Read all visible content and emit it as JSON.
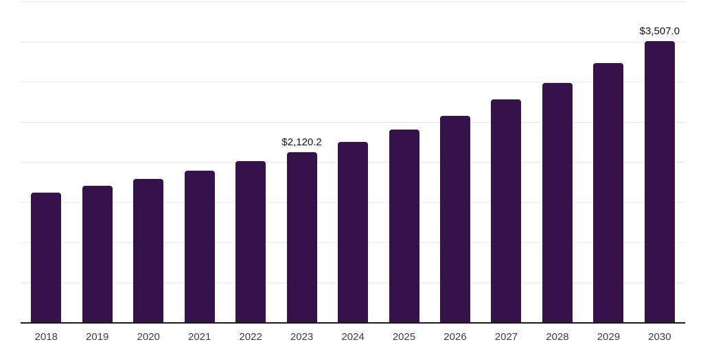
{
  "chart_data": {
    "type": "bar",
    "title": "",
    "xlabel": "",
    "ylabel": "",
    "categories": [
      "2018",
      "2019",
      "2020",
      "2021",
      "2022",
      "2023",
      "2024",
      "2025",
      "2026",
      "2027",
      "2028",
      "2029",
      "2030"
    ],
    "values": [
      1615,
      1700,
      1790,
      1890,
      2005,
      2120.2,
      2250,
      2405,
      2575,
      2780,
      2980,
      3235,
      3507
    ],
    "value_labels": {
      "2023": "$2,120.2",
      "2030": "$3,507.0"
    },
    "ylim": [
      0,
      4000
    ],
    "y_gridlines": [
      500,
      1000,
      1500,
      2000,
      2500,
      3000,
      3500,
      4000
    ],
    "grid": "horizontal, light gray, no y tick labels",
    "legend": "none",
    "bar_color": "#36124B",
    "axis_color": "#1a1a1a",
    "gridline_color": "#ececec",
    "data_label_color": "#111111",
    "tick_label_color": "#3c3c3c",
    "background_color": "#ffffff"
  }
}
